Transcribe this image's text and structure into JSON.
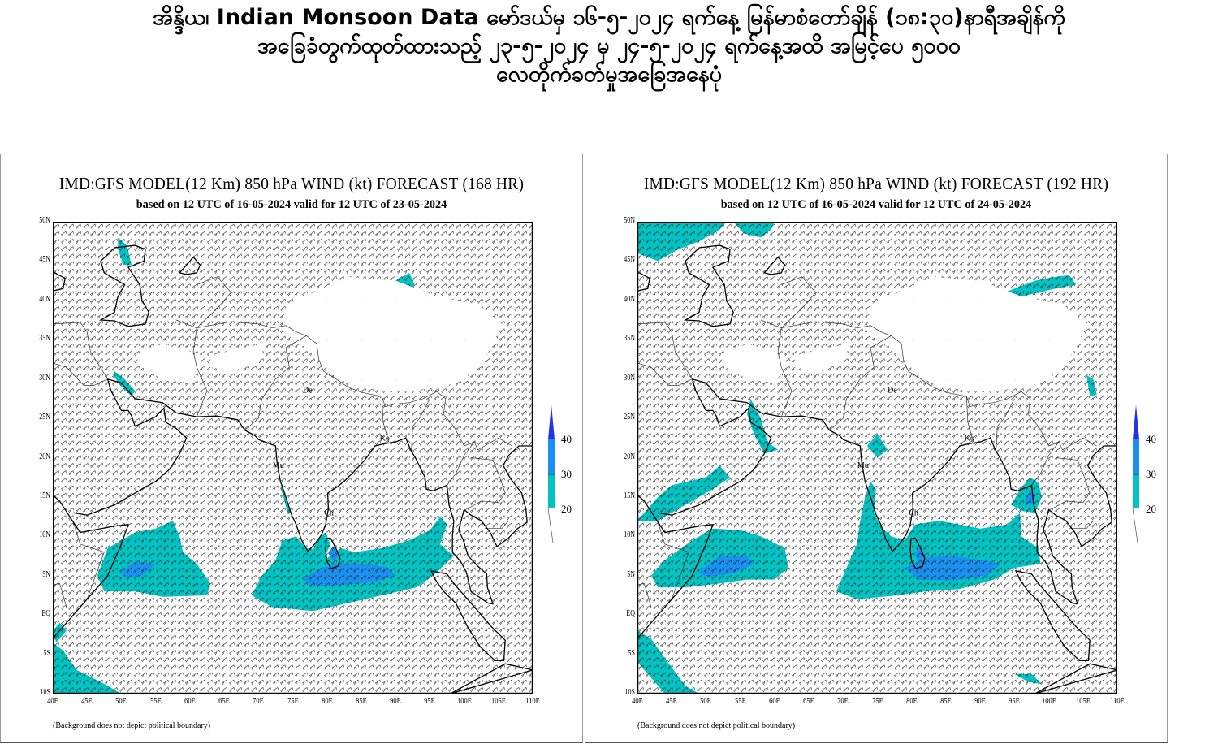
{
  "header": {
    "title_lines": [
      "အိန္ဒိယ၊ Indian Monsoon Data မော်ဒယ်မှ ၁၆-၅-၂၀၂၄ ရက်နေ့ မြန်မာစံတော်ချိန် (၁၈:၃၀)နာရီအချိန်ကို",
      "အခြေခံတွက်ထုတ်ထားသည့် ၂၃-၅-၂၀၂၄ မှ ၂၄-၅-၂၀၂၄ ရက်နေ့အထိ အမြင့်ပေ ၅၀၀၀",
      "လေတိုက်ခတ်မှုအခြေအနေပုံ"
    ]
  },
  "chart_data": [
    {
      "type": "heatmap",
      "title": "IMD:GFS MODEL(12 Km) 850 hPa WIND (kt) FORECAST (168 HR)",
      "subtitle": "based on 12 UTC of 16-05-2024 valid for 12 UTC of 23-05-2024",
      "xlim": [
        40,
        110
      ],
      "ylim": [
        -10,
        50
      ],
      "x_ticks": [
        "40E",
        "45E",
        "50E",
        "55E",
        "60E",
        "65E",
        "70E",
        "75E",
        "80E",
        "85E",
        "90E",
        "95E",
        "100E",
        "105E",
        "110E"
      ],
      "y_ticks": [
        "50N",
        "45N",
        "40N",
        "35N",
        "30N",
        "25N",
        "20N",
        "15N",
        "10N",
        "5N",
        "EQ",
        "5S",
        "10S"
      ],
      "colorbar": {
        "levels": [
          20,
          30,
          40
        ],
        "colors": [
          "#00c4c4",
          "#1a90f0",
          "#2233e8"
        ]
      },
      "city_labels": [
        "De",
        "Ko",
        "Mu",
        "Ch"
      ],
      "note": "(Background does not depict political boundary)"
    },
    {
      "type": "heatmap",
      "title": "IMD:GFS MODEL(12 Km) 850 hPa WIND (kt) FORECAST (192 HR)",
      "subtitle": "based on 12 UTC of 16-05-2024 valid for 12 UTC of 24-05-2024",
      "xlim": [
        40,
        110
      ],
      "ylim": [
        -10,
        50
      ],
      "x_ticks": [
        "40E",
        "45E",
        "50E",
        "55E",
        "60E",
        "65E",
        "70E",
        "75E",
        "80E",
        "85E",
        "90E",
        "95E",
        "100E",
        "105E",
        "110E"
      ],
      "y_ticks": [
        "50N",
        "45N",
        "40N",
        "35N",
        "30N",
        "25N",
        "20N",
        "15N",
        "10N",
        "5N",
        "EQ",
        "5S",
        "10S"
      ],
      "colorbar": {
        "levels": [
          20,
          30,
          40
        ],
        "colors": [
          "#00c4c4",
          "#1a90f0",
          "#2233e8"
        ]
      },
      "city_labels": [
        "De",
        "Ko",
        "Mu",
        "Ch"
      ],
      "note": "(Background does not depict political boundary)"
    }
  ]
}
